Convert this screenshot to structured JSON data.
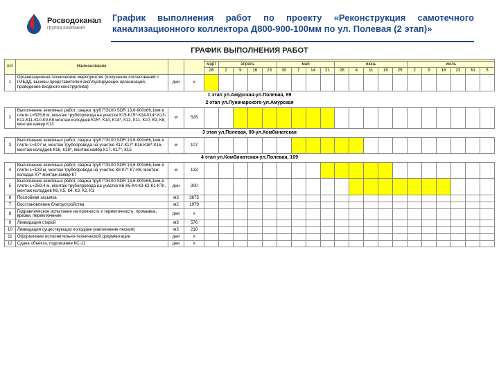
{
  "brand": {
    "name": "Росводоканал",
    "sub": "группа компаний"
  },
  "title": "График выполнения работ по проекту «Реконструкция самотечного канализационного коллектора Д800-900-100мм по ул. Полевая (2 этап)»",
  "scheduleTitle": "ГРАФИК ВЫПОЛНЕНИЯ РАБОТ",
  "columns": {
    "num": "п/п",
    "name": "Наименование",
    "unit": "",
    "qty": "",
    "months": [
      "март",
      "апрель",
      "май",
      "июнь",
      "июль"
    ],
    "days": [
      "26",
      "2",
      "9",
      "16",
      "23",
      "30",
      "7",
      "14",
      "21",
      "28",
      "4",
      "11",
      "18",
      "25",
      "2",
      "9",
      "16",
      "23",
      "30",
      "5"
    ]
  },
  "stages": [
    "1 этап ул.Амурская-ул.Полевая, 89",
    "2 этап ул.Луначарского-ул.Амурская",
    "3 этап ул.Полевая, 89-ул.Комбинатская",
    "4 этап ул.Комбинатская-ул.Полевая, 109"
  ],
  "rows": [
    {
      "n": "1",
      "name": "Организационно-технические мероприятия (получение согласований с ГИБДД, вызовы представителей эксплуатирующих организаций, проведение входного конструктива)",
      "unit": "дни",
      "qty": "x",
      "bars": [
        0
      ]
    },
    {
      "n": "2",
      "name": "Выполнение земляных работ, сварка труб ПЭ100 SDR 13,6-900х66,1мм в плети L=525,6 м, монтаж трубопровода на участке К15-К15*-К14-К14*-К13-К12-К11-К10-К9-К8 монтаж колодцев К15*, К14, К14*, К12, К11, К10, К9, К8, монтаж камер К13",
      "unit": "м",
      "qty": "526",
      "bars": [
        2,
        3,
        4,
        5,
        6,
        7,
        8
      ]
    },
    {
      "n": "3",
      "name": "Выполнение земляных работ, сварка труб ПЭ100 SDR 13,6-900х66,1мм в плети L=107 м, монтаж трубопровода на участке К17-К17*-К16-К16*-К15, монтаж колодцев К16, К16*, монтаж камер К17, К17*, К15",
      "unit": "м",
      "qty": "107",
      "bars": [
        6,
        7,
        8,
        9,
        10
      ]
    },
    {
      "n": "4",
      "name": "Выполнение земляных работ, сварка труб ПЭ100 SDR 13,6-900х66,1мм в плети L=133 м, монтаж трубопровода на участке К8-К7*-К7-К6, монтаж колодца К7* монтаж камер К7",
      "unit": "м",
      "qty": "133",
      "bars": [
        8,
        9,
        10,
        11,
        12
      ]
    },
    {
      "n": "5",
      "name": "Выполнение земляных работ, сварка труб ПЭ100 SDR 13,6-900х66,1мм в плети L=259,4 м, монтаж трубопровода на участке К6-К5-К4-К3-К2-К1-КТп, монтаж колодцев К6, К5, К4, К3, К2, К1",
      "unit": "дни",
      "qty": "300",
      "bars": [
        10,
        11,
        12,
        13,
        14,
        15,
        16
      ]
    },
    {
      "n": "6",
      "name": "Послойная засыпка",
      "unit": "м3",
      "qty": "3675",
      "bars": []
    },
    {
      "n": "7",
      "name": "Восстановление благоустройства",
      "unit": "м2",
      "qty": "1979",
      "bars": []
    },
    {
      "n": "8",
      "name": "Гидравлическое испытание на прочность и герметичность, промывка, врезки, переключение",
      "unit": "дни",
      "qty": "x",
      "bars": []
    },
    {
      "n": "9",
      "name": "Ликвидация старой",
      "unit": "м3",
      "qty": "576",
      "bars": []
    },
    {
      "n": "10",
      "name": "Ликвидация существующих колодцев (наполнение песком)",
      "unit": "м3",
      "qty": "210",
      "bars": []
    },
    {
      "n": "11",
      "name": "Оформление исполнительно-технической документации",
      "unit": "дни",
      "qty": "x",
      "bars": []
    },
    {
      "n": "12",
      "name": "Сдача объекта, подписание КС-11",
      "unit": "дни",
      "qty": "x",
      "bars": []
    }
  ],
  "colors": {
    "headerBg": "#ffffcc",
    "barFill": "#ffff00",
    "titleColor": "#1e4a8c",
    "logoRed": "#c62828",
    "logoBlue": "#1e4a8c"
  }
}
